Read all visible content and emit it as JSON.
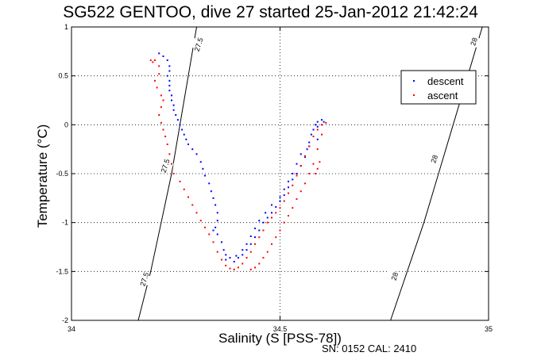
{
  "chart_data": {
    "type": "scatter",
    "title": "SG522 GENTOO, dive 27 started 25-Jan-2012 21:42:24",
    "xlabel": "Salinity (S [PSS-78])",
    "ylabel": "Temperature (°C)",
    "xlim": [
      34,
      35
    ],
    "ylim": [
      -2,
      1
    ],
    "x_ticks": [
      34,
      34.5,
      35
    ],
    "x_tick_labels": [
      "34",
      "34.5",
      "35"
    ],
    "y_ticks": [
      -2,
      -1.5,
      -1,
      -0.5,
      0,
      0.5,
      1
    ],
    "y_tick_labels": [
      "-2",
      "-1.5",
      "-1",
      "-0.5",
      "0",
      "0.5",
      "1"
    ],
    "grid": true,
    "legend_position": "top-right",
    "series": [
      {
        "name": "descent",
        "color": "#0000ff",
        "points": [
          [
            34.21,
            0.73
          ],
          [
            34.22,
            0.7
          ],
          [
            34.23,
            0.66
          ],
          [
            34.235,
            0.6
          ],
          [
            34.235,
            0.55
          ],
          [
            34.23,
            0.5
          ],
          [
            34.235,
            0.45
          ],
          [
            34.235,
            0.4
          ],
          [
            34.235,
            0.35
          ],
          [
            34.24,
            0.3
          ],
          [
            34.24,
            0.25
          ],
          [
            34.245,
            0.2
          ],
          [
            34.245,
            0.15
          ],
          [
            34.25,
            0.1
          ],
          [
            34.255,
            0.05
          ],
          [
            34.26,
            0.0
          ],
          [
            34.265,
            -0.05
          ],
          [
            34.27,
            -0.1
          ],
          [
            34.275,
            -0.15
          ],
          [
            34.28,
            -0.2
          ],
          [
            34.29,
            -0.25
          ],
          [
            34.3,
            -0.3
          ],
          [
            34.31,
            -0.38
          ],
          [
            34.315,
            -0.45
          ],
          [
            34.32,
            -0.52
          ],
          [
            34.33,
            -0.6
          ],
          [
            34.335,
            -0.68
          ],
          [
            34.34,
            -0.75
          ],
          [
            34.345,
            -0.82
          ],
          [
            34.35,
            -0.9
          ],
          [
            34.35,
            -0.98
          ],
          [
            34.345,
            -1.05
          ],
          [
            34.34,
            -1.08
          ],
          [
            34.35,
            -1.12
          ],
          [
            34.36,
            -1.2
          ],
          [
            34.365,
            -1.28
          ],
          [
            34.37,
            -1.33
          ],
          [
            34.37,
            -1.38
          ],
          [
            34.38,
            -1.36
          ],
          [
            34.39,
            -1.4
          ],
          [
            34.4,
            -1.36
          ],
          [
            34.41,
            -1.33
          ],
          [
            34.42,
            -1.28
          ],
          [
            34.43,
            -1.22
          ],
          [
            34.44,
            -1.15
          ],
          [
            34.45,
            -1.08
          ],
          [
            34.46,
            -1.0
          ],
          [
            34.47,
            -0.95
          ],
          [
            34.48,
            -0.9
          ],
          [
            34.49,
            -0.84
          ],
          [
            34.5,
            -0.78
          ],
          [
            34.51,
            -0.72
          ],
          [
            34.52,
            -0.64
          ],
          [
            34.53,
            -0.56
          ],
          [
            34.54,
            -0.5
          ],
          [
            34.55,
            -0.42
          ],
          [
            34.56,
            -0.33
          ],
          [
            34.565,
            -0.25
          ],
          [
            34.57,
            -0.18
          ],
          [
            34.575,
            -0.1
          ],
          [
            34.58,
            -0.05
          ],
          [
            34.585,
            0.0
          ],
          [
            34.59,
            0.03
          ],
          [
            34.6,
            0.05
          ],
          [
            34.605,
            0.03
          ],
          [
            34.59,
            -0.02
          ],
          [
            34.58,
            -0.05
          ],
          [
            34.59,
            -0.15
          ],
          [
            34.57,
            -0.22
          ],
          [
            34.55,
            -0.3
          ],
          [
            34.54,
            -0.4
          ],
          [
            34.53,
            -0.5
          ],
          [
            34.52,
            -0.58
          ],
          [
            34.51,
            -0.66
          ],
          [
            34.5,
            -0.74
          ],
          [
            34.48,
            -0.82
          ],
          [
            34.465,
            -0.9
          ],
          [
            34.45,
            -0.98
          ],
          [
            34.44,
            -1.06
          ],
          [
            34.43,
            -1.14
          ],
          [
            34.42,
            -1.22
          ],
          [
            34.41,
            -1.28
          ],
          [
            34.395,
            -1.34
          ]
        ]
      },
      {
        "name": "ascent",
        "color": "#ff0000",
        "points": [
          [
            34.19,
            0.66
          ],
          [
            34.195,
            0.64
          ],
          [
            34.2,
            0.66
          ],
          [
            34.21,
            0.6
          ],
          [
            34.21,
            0.52
          ],
          [
            34.2,
            0.45
          ],
          [
            34.205,
            0.38
          ],
          [
            34.215,
            0.3
          ],
          [
            34.22,
            0.25
          ],
          [
            34.215,
            0.18
          ],
          [
            34.21,
            0.1
          ],
          [
            34.215,
            0.02
          ],
          [
            34.22,
            -0.05
          ],
          [
            34.225,
            -0.12
          ],
          [
            34.23,
            -0.2
          ],
          [
            34.235,
            -0.3
          ],
          [
            34.24,
            -0.4
          ],
          [
            34.245,
            -0.5
          ],
          [
            34.26,
            -0.58
          ],
          [
            34.27,
            -0.66
          ],
          [
            34.28,
            -0.74
          ],
          [
            34.29,
            -0.82
          ],
          [
            34.3,
            -0.9
          ],
          [
            34.31,
            -0.98
          ],
          [
            34.32,
            -1.05
          ],
          [
            34.33,
            -1.12
          ],
          [
            34.34,
            -1.2
          ],
          [
            34.35,
            -1.3
          ],
          [
            34.36,
            -1.38
          ],
          [
            34.37,
            -1.44
          ],
          [
            34.38,
            -1.47
          ],
          [
            34.39,
            -1.48
          ],
          [
            34.4,
            -1.46
          ],
          [
            34.41,
            -1.42
          ],
          [
            34.42,
            -1.36
          ],
          [
            34.43,
            -1.3
          ],
          [
            34.44,
            -1.22
          ],
          [
            34.45,
            -1.15
          ],
          [
            34.46,
            -1.08
          ],
          [
            34.47,
            -1.0
          ],
          [
            34.48,
            -0.95
          ],
          [
            34.49,
            -0.9
          ],
          [
            34.5,
            -0.85
          ],
          [
            34.51,
            -0.78
          ],
          [
            34.52,
            -0.7
          ],
          [
            34.53,
            -0.62
          ],
          [
            34.54,
            -0.52
          ],
          [
            34.55,
            -0.42
          ],
          [
            34.56,
            -0.32
          ],
          [
            34.57,
            -0.22
          ],
          [
            34.58,
            -0.12
          ],
          [
            34.59,
            -0.05
          ],
          [
            34.6,
            0.0
          ],
          [
            34.61,
            0.02
          ],
          [
            34.6,
            -0.1
          ],
          [
            34.59,
            -0.25
          ],
          [
            34.58,
            -0.4
          ],
          [
            34.585,
            -0.5
          ],
          [
            34.59,
            -0.45
          ],
          [
            34.595,
            -0.38
          ],
          [
            34.57,
            -0.5
          ],
          [
            34.56,
            -0.6
          ],
          [
            34.55,
            -0.68
          ],
          [
            34.54,
            -0.76
          ],
          [
            34.53,
            -0.85
          ],
          [
            34.52,
            -0.93
          ],
          [
            34.51,
            -1.0
          ],
          [
            34.5,
            -1.08
          ],
          [
            34.49,
            -1.15
          ],
          [
            34.48,
            -1.22
          ],
          [
            34.47,
            -1.3
          ],
          [
            34.46,
            -1.36
          ],
          [
            34.45,
            -1.42
          ],
          [
            34.44,
            -1.46
          ],
          [
            34.43,
            -1.48
          ]
        ]
      }
    ],
    "isopycnals": [
      {
        "label": "27.5",
        "points": [
          [
            34.16,
            -2
          ],
          [
            34.19,
            -1.5
          ],
          [
            34.215,
            -1
          ],
          [
            34.24,
            -0.5
          ],
          [
            34.26,
            0
          ],
          [
            34.28,
            0.5
          ],
          [
            34.3,
            1
          ]
        ],
        "labels_at": [
          [
            34.175,
            -1.58
          ],
          [
            34.225,
            -0.42
          ],
          [
            34.305,
            0.82
          ]
        ]
      },
      {
        "label": "28",
        "points": [
          [
            34.765,
            -2
          ],
          [
            34.805,
            -1.5
          ],
          [
            34.845,
            -1
          ],
          [
            34.88,
            -0.5
          ],
          [
            34.915,
            0
          ],
          [
            34.95,
            0.5
          ],
          [
            34.985,
            1
          ]
        ],
        "labels_at": [
          [
            34.775,
            -1.55
          ],
          [
            34.87,
            -0.35
          ],
          [
            34.965,
            0.85
          ]
        ]
      }
    ]
  },
  "footer": "SN: 0152  CAL: 2410"
}
